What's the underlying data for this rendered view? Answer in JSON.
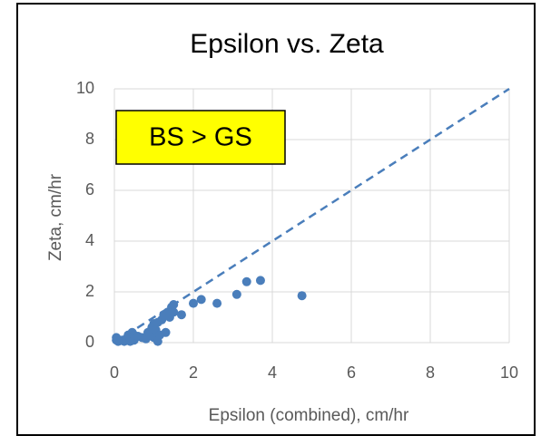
{
  "chart_data": {
    "type": "scatter",
    "title": "Epsilon vs. Zeta",
    "annotation": "BS > GS",
    "x_label": "Epsilon (combined), cm/hr",
    "y_label": "Zeta, cm/hr",
    "xlim": [
      0,
      10
    ],
    "ylim": [
      0,
      10
    ],
    "xticks": [
      0,
      2,
      4,
      6,
      8,
      10
    ],
    "yticks": [
      0,
      2,
      4,
      6,
      8,
      10
    ],
    "grid": true,
    "series": [
      {
        "color": "#4a7ebb",
        "x": [
          0.05,
          0.05,
          0.1,
          0.2,
          0.25,
          0.3,
          0.35,
          0.4,
          0.4,
          0.45,
          0.5,
          0.5,
          0.6,
          0.7,
          0.8,
          0.85,
          0.9,
          0.95,
          1.0,
          1.0,
          1.05,
          1.1,
          1.1,
          1.15,
          1.2,
          1.25,
          1.3,
          1.35,
          1.4,
          1.45,
          1.5,
          1.5,
          1.7,
          2.0,
          2.2,
          2.6,
          3.1,
          3.35,
          3.7,
          4.75
        ],
        "values": [
          0.1,
          0.2,
          0.05,
          0.1,
          0.05,
          0.15,
          0.3,
          0.05,
          0.2,
          0.4,
          0.1,
          0.3,
          0.25,
          0.2,
          0.15,
          0.4,
          0.3,
          0.6,
          0.75,
          0.2,
          0.5,
          0.8,
          0.05,
          0.3,
          0.9,
          1.1,
          0.4,
          1.2,
          1.0,
          1.4,
          1.5,
          1.2,
          1.1,
          1.55,
          1.7,
          1.55,
          1.9,
          2.4,
          2.45,
          1.85
        ]
      }
    ],
    "reference_line": {
      "color": "#4a7ebb",
      "x": [
        0,
        10
      ],
      "values": [
        0,
        10
      ]
    }
  }
}
